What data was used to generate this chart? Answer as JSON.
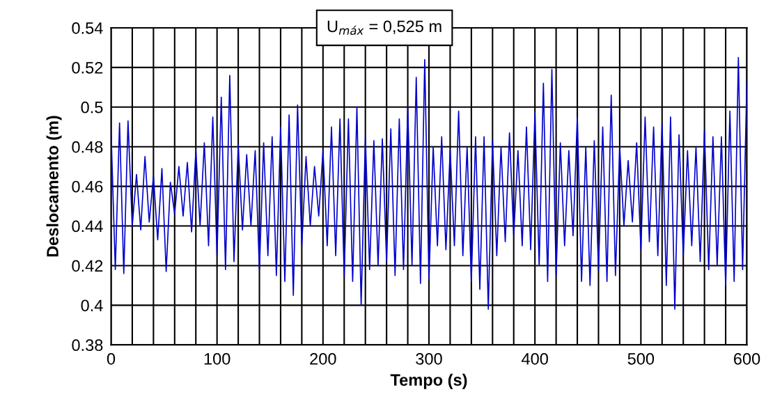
{
  "chart_data": {
    "type": "line",
    "xlabel": "Tempo (s)",
    "ylabel": "Deslocamento (m)",
    "annotations": [
      "U$_{máx}$ = 0,525 m"
    ],
    "xlim": [
      0,
      600
    ],
    "ylim": [
      0.38,
      0.54
    ],
    "xticks": [
      0,
      {
        "value": 20,
        "label": null
      },
      {
        "value": 40,
        "label": null
      },
      {
        "value": 60,
        "label": null
      },
      {
        "value": 80,
        "label": null
      },
      100,
      {
        "value": 120,
        "label": null
      },
      {
        "value": 140,
        "label": null
      },
      {
        "value": 160,
        "label": null
      },
      {
        "value": 180,
        "label": null
      },
      200,
      {
        "value": 220,
        "label": null
      },
      {
        "value": 240,
        "label": null
      },
      {
        "value": 260,
        "label": null
      },
      {
        "value": 280,
        "label": null
      },
      300,
      {
        "value": 320,
        "label": null
      },
      {
        "value": 340,
        "label": null
      },
      {
        "value": 360,
        "label": null
      },
      {
        "value": 380,
        "label": null
      },
      400,
      {
        "value": 420,
        "label": null
      },
      {
        "value": 440,
        "label": null
      },
      {
        "value": 460,
        "label": null
      },
      {
        "value": 480,
        "label": null
      },
      500,
      {
        "value": 520,
        "label": null
      },
      {
        "value": 540,
        "label": null
      },
      {
        "value": 560,
        "label": null
      },
      {
        "value": 580,
        "label": null
      },
      600
    ],
    "yticks": [
      0.38,
      0.4,
      0.42,
      0.44,
      0.46,
      0.48,
      0.5,
      0.52,
      0.54
    ],
    "grid": true,
    "legend": false,
    "marker": "none",
    "line_style": "solid",
    "series": [
      {
        "color": "#0000cc",
        "x": [
          0,
          4,
          8,
          12,
          16,
          20,
          24,
          28,
          32,
          36,
          40,
          44,
          48,
          52,
          56,
          60,
          64,
          68,
          72,
          76,
          80,
          84,
          88,
          92,
          96,
          100,
          104,
          108,
          112,
          116,
          120,
          124,
          128,
          132,
          136,
          140,
          144,
          148,
          152,
          156,
          160,
          164,
          168,
          172,
          176,
          180,
          184,
          188,
          192,
          196,
          200,
          204,
          208,
          212,
          216,
          220,
          224,
          228,
          232,
          236,
          240,
          244,
          248,
          252,
          256,
          260,
          264,
          268,
          272,
          276,
          280,
          284,
          288,
          292,
          296,
          300,
          304,
          308,
          312,
          316,
          320,
          324,
          328,
          332,
          336,
          340,
          344,
          348,
          352,
          356,
          360,
          364,
          368,
          372,
          376,
          380,
          384,
          388,
          392,
          396,
          400,
          404,
          408,
          412,
          416,
          420,
          424,
          428,
          432,
          436,
          440,
          444,
          448,
          452,
          456,
          460,
          464,
          468,
          472,
          476,
          480,
          484,
          488,
          492,
          496,
          500,
          504,
          508,
          512,
          516,
          520,
          524,
          528,
          532,
          536,
          540,
          544,
          548,
          552,
          556,
          560,
          564,
          568,
          572,
          576,
          580,
          584,
          588,
          592,
          596,
          600
        ],
        "values": [
          0.488,
          0.418,
          0.492,
          0.416,
          0.493,
          0.44,
          0.466,
          0.438,
          0.475,
          0.442,
          0.465,
          0.433,
          0.469,
          0.417,
          0.462,
          0.446,
          0.47,
          0.445,
          0.472,
          0.437,
          0.478,
          0.44,
          0.482,
          0.43,
          0.495,
          0.425,
          0.505,
          0.418,
          0.516,
          0.422,
          0.481,
          0.438,
          0.476,
          0.44,
          0.478,
          0.418,
          0.482,
          0.425,
          0.485,
          0.415,
          0.49,
          0.412,
          0.496,
          0.405,
          0.501,
          0.43,
          0.475,
          0.44,
          0.47,
          0.445,
          0.478,
          0.43,
          0.49,
          0.425,
          0.494,
          0.415,
          0.494,
          0.412,
          0.5,
          0.4,
          0.485,
          0.418,
          0.483,
          0.42,
          0.484,
          0.422,
          0.489,
          0.415,
          0.494,
          0.418,
          0.5,
          0.42,
          0.515,
          0.411,
          0.524,
          0.413,
          0.48,
          0.43,
          0.485,
          0.428,
          0.478,
          0.43,
          0.498,
          0.425,
          0.48,
          0.412,
          0.485,
          0.408,
          0.485,
          0.398,
          0.483,
          0.425,
          0.48,
          0.432,
          0.487,
          0.435,
          0.478,
          0.43,
          0.49,
          0.428,
          0.497,
          0.42,
          0.512,
          0.412,
          0.519,
          0.415,
          0.482,
          0.43,
          0.478,
          0.435,
          0.495,
          0.412,
          0.48,
          0.41,
          0.483,
          0.418,
          0.49,
          0.412,
          0.506,
          0.415,
          0.48,
          0.44,
          0.473,
          0.442,
          0.482,
          0.428,
          0.495,
          0.432,
          0.49,
          0.425,
          0.492,
          0.41,
          0.495,
          0.398,
          0.486,
          0.425,
          0.478,
          0.43,
          0.48,
          0.422,
          0.488,
          0.418,
          0.485,
          0.42,
          0.485,
          0.41,
          0.498,
          0.412,
          0.525,
          0.418,
          0.513
        ]
      }
    ]
  }
}
